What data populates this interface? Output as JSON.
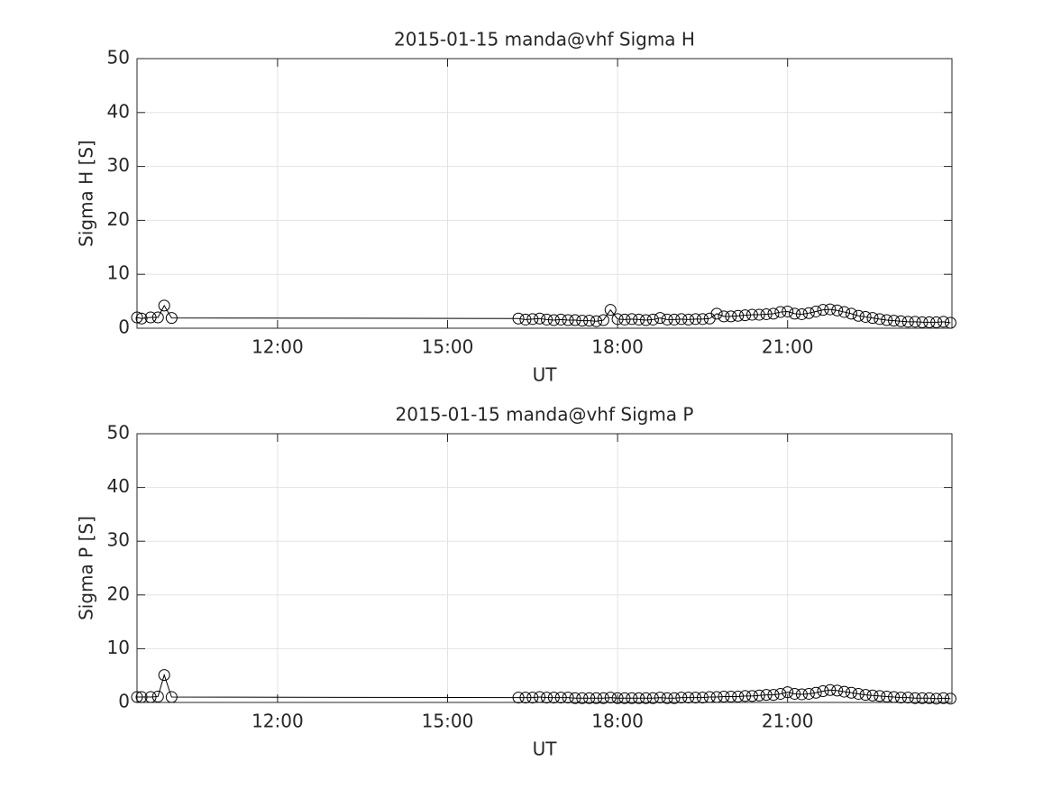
{
  "chart_data": [
    {
      "type": "line",
      "title": "2015-01-15  manda@vhf Sigma H",
      "xlabel": "UT",
      "ylabel": "Sigma H [S]",
      "color": "#000000",
      "marker": "circle",
      "grid": true,
      "xlim": [
        9.52,
        23.9
      ],
      "xticks": [
        {
          "value": 12,
          "label": "12:00"
        },
        {
          "value": 15,
          "label": "15:00"
        },
        {
          "value": 18,
          "label": "18:00"
        },
        {
          "value": 21,
          "label": "21:00"
        }
      ],
      "ylim": [
        0,
        50
      ],
      "yticks": [
        0,
        10,
        20,
        30,
        40,
        50
      ],
      "x": [
        9.52,
        9.6,
        9.76,
        9.89,
        10.0,
        10.13,
        16.25,
        16.375,
        16.5,
        16.625,
        16.75,
        16.875,
        17.0,
        17.125,
        17.25,
        17.375,
        17.5,
        17.625,
        17.75,
        17.875,
        18.0,
        18.125,
        18.25,
        18.375,
        18.5,
        18.625,
        18.75,
        18.875,
        19.0,
        19.125,
        19.25,
        19.375,
        19.5,
        19.625,
        19.75,
        19.875,
        20.0,
        20.125,
        20.25,
        20.375,
        20.5,
        20.625,
        20.75,
        20.875,
        21.0,
        21.125,
        21.25,
        21.375,
        21.5,
        21.625,
        21.75,
        21.875,
        22.0,
        22.125,
        22.25,
        22.375,
        22.5,
        22.625,
        22.75,
        22.875,
        23.0,
        23.125,
        23.25,
        23.375,
        23.5,
        23.625,
        23.75,
        23.875
      ],
      "values": [
        2.0,
        1.8,
        2.0,
        2.0,
        4.2,
        1.9,
        1.8,
        1.6,
        1.7,
        1.8,
        1.6,
        1.5,
        1.6,
        1.5,
        1.5,
        1.4,
        1.4,
        1.3,
        1.5,
        3.4,
        1.7,
        1.6,
        1.7,
        1.6,
        1.5,
        1.6,
        1.9,
        1.6,
        1.6,
        1.7,
        1.6,
        1.7,
        1.7,
        1.8,
        2.7,
        2.2,
        2.2,
        2.3,
        2.4,
        2.5,
        2.5,
        2.6,
        2.7,
        3.0,
        3.1,
        2.7,
        2.6,
        2.8,
        3.1,
        3.4,
        3.5,
        3.3,
        3.0,
        2.7,
        2.3,
        2.1,
        1.9,
        1.7,
        1.5,
        1.4,
        1.3,
        1.2,
        1.2,
        1.1,
        1.1,
        1.1,
        1.2,
        1.0
      ]
    },
    {
      "type": "line",
      "title": "2015-01-15  manda@vhf Sigma P",
      "xlabel": "UT",
      "ylabel": "Sigma P [S]",
      "color": "#000000",
      "marker": "circle",
      "grid": true,
      "xlim": [
        9.52,
        23.9
      ],
      "xticks": [
        {
          "value": 12,
          "label": "12:00"
        },
        {
          "value": 15,
          "label": "15:00"
        },
        {
          "value": 18,
          "label": "18:00"
        },
        {
          "value": 21,
          "label": "21:00"
        }
      ],
      "ylim": [
        0,
        50
      ],
      "yticks": [
        0,
        10,
        20,
        30,
        40,
        50
      ],
      "x": [
        9.52,
        9.6,
        9.76,
        9.89,
        10.0,
        10.13,
        16.25,
        16.375,
        16.5,
        16.625,
        16.75,
        16.875,
        17.0,
        17.125,
        17.25,
        17.375,
        17.5,
        17.625,
        17.75,
        17.875,
        18.0,
        18.125,
        18.25,
        18.375,
        18.5,
        18.625,
        18.75,
        18.875,
        19.0,
        19.125,
        19.25,
        19.375,
        19.5,
        19.625,
        19.75,
        19.875,
        20.0,
        20.125,
        20.25,
        20.375,
        20.5,
        20.625,
        20.75,
        20.875,
        21.0,
        21.125,
        21.25,
        21.375,
        21.5,
        21.625,
        21.75,
        21.875,
        22.0,
        22.125,
        22.25,
        22.375,
        22.5,
        22.625,
        22.75,
        22.875,
        23.0,
        23.125,
        23.25,
        23.375,
        23.5,
        23.625,
        23.75,
        23.875
      ],
      "values": [
        1.0,
        1.0,
        1.0,
        1.1,
        5.1,
        1.0,
        0.9,
        0.9,
        0.9,
        1.0,
        0.9,
        0.9,
        0.9,
        0.9,
        0.8,
        0.8,
        0.8,
        0.8,
        0.8,
        0.9,
        0.8,
        0.8,
        0.8,
        0.8,
        0.8,
        0.8,
        0.9,
        0.8,
        0.8,
        0.9,
        0.9,
        0.9,
        0.9,
        1.0,
        1.0,
        1.1,
        1.1,
        1.1,
        1.2,
        1.2,
        1.3,
        1.4,
        1.4,
        1.6,
        1.9,
        1.6,
        1.5,
        1.6,
        1.8,
        2.1,
        2.3,
        2.2,
        2.0,
        1.8,
        1.6,
        1.4,
        1.3,
        1.2,
        1.1,
        1.0,
        0.9,
        0.9,
        0.8,
        0.8,
        0.8,
        0.7,
        0.8,
        0.7
      ]
    }
  ]
}
